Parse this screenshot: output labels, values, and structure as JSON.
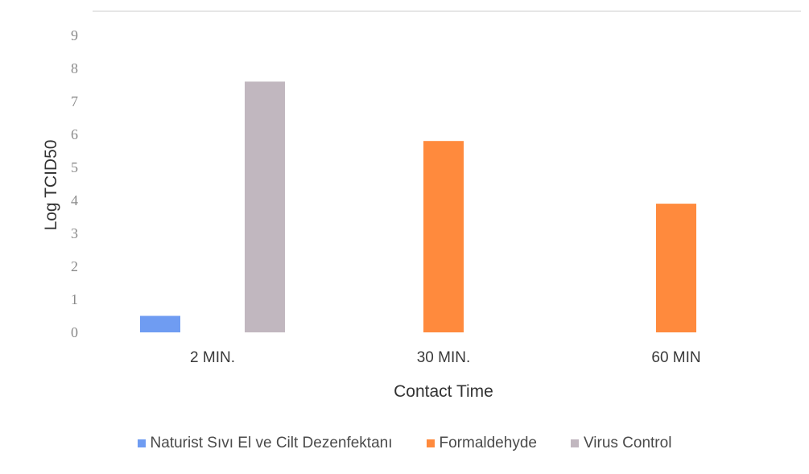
{
  "chart_data": {
    "type": "bar",
    "categories": [
      "2 MIN.",
      "30 MIN.",
      "60 MIN"
    ],
    "series": [
      {
        "name": "Naturist Sıvı El ve Cilt Dezenfektanı",
        "color": "#6f9cf2",
        "values": [
          0.5,
          null,
          null
        ]
      },
      {
        "name": "Formaldehyde",
        "color": "#ff8a3d",
        "values": [
          null,
          5.8,
          3.9
        ]
      },
      {
        "name": "Virus Control",
        "color": "#c1b7bf",
        "values": [
          7.6,
          null,
          null
        ]
      }
    ],
    "xlabel": "Contact Time",
    "ylabel": "Log TCID50",
    "ylim": [
      0,
      9
    ],
    "yticks": [
      0,
      1,
      2,
      3,
      4,
      5,
      6,
      7,
      8,
      9
    ],
    "grid": false,
    "legend_position": "bottom"
  }
}
